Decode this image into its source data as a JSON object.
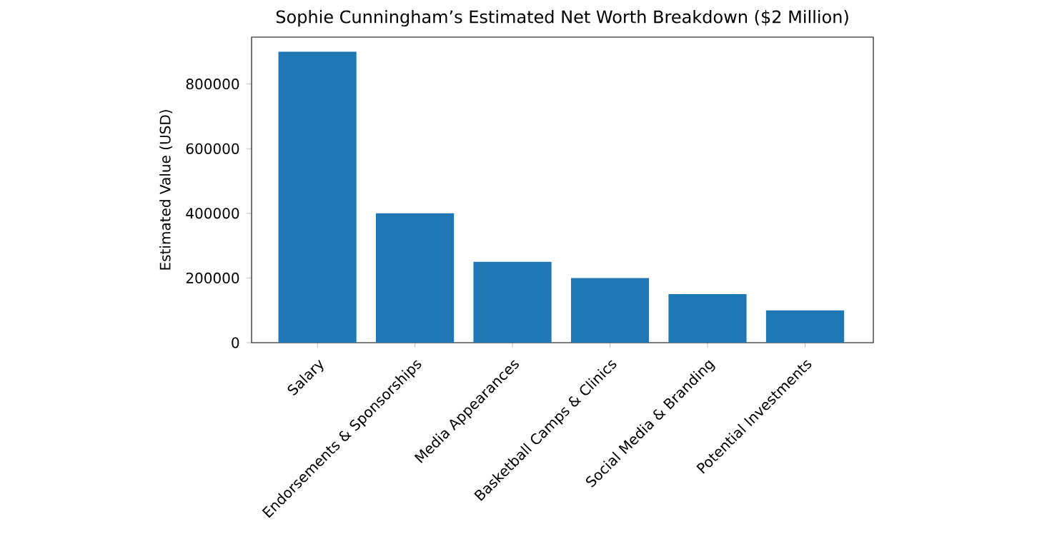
{
  "chart_data": {
    "type": "bar",
    "title": "Sophie Cunningham’s Estimated Net Worth Breakdown ($2 Million)",
    "ylabel": "Estimated Value (USD)",
    "categories": [
      "Salary",
      "Endorsements & Sponsorships",
      "Media Appearances",
      "Basketball Camps & Clinics",
      "Social Media & Branding",
      "Potential Investments"
    ],
    "values": [
      900000,
      400000,
      250000,
      200000,
      150000,
      100000
    ],
    "color": "#1f77b4",
    "ylim": [
      0,
      945000
    ],
    "yticks": [
      0,
      200000,
      400000,
      600000,
      800000
    ]
  }
}
